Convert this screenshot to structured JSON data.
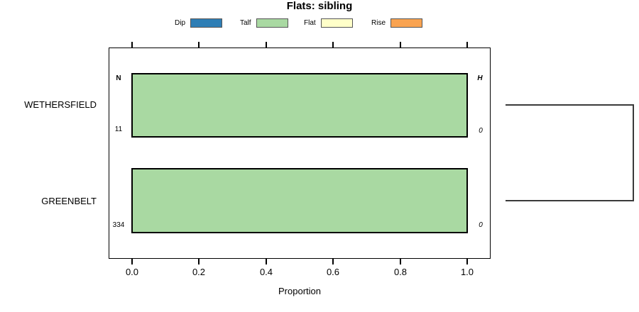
{
  "title": "Flats: sibling",
  "legend": {
    "items": [
      {
        "label": "Dip",
        "color": "#2e7eb5"
      },
      {
        "label": "Talf",
        "color": "#a9d9a2"
      },
      {
        "label": "Flat",
        "color": "#ffffc9"
      },
      {
        "label": "Rise",
        "color": "#f9a351"
      }
    ]
  },
  "x_axis": {
    "label": "Proportion",
    "ticks": [
      "0.0",
      "0.2",
      "0.4",
      "0.6",
      "0.8",
      "1.0"
    ]
  },
  "rows": [
    {
      "category": "WETHERSFIELD",
      "left_header": "N",
      "right_header": "H",
      "left_count": "11",
      "right_count": "0"
    },
    {
      "category": "GREENBELT",
      "left_count": "334",
      "right_count": "0"
    }
  ],
  "chart_data": {
    "type": "bar",
    "orientation": "horizontal",
    "title": "Flats: sibling",
    "xlabel": "Proportion",
    "ylabel": "",
    "xlim": [
      0.0,
      1.0
    ],
    "xticks": [
      0.0,
      0.2,
      0.4,
      0.6,
      0.8,
      1.0
    ],
    "grid": false,
    "legend_position": "top",
    "categories": [
      "WETHERSFIELD",
      "GREENBELT"
    ],
    "series": [
      {
        "name": "Dip",
        "color": "#2e7eb5",
        "values": [
          0.0,
          0.0
        ]
      },
      {
        "name": "Talf",
        "color": "#a9d9a2",
        "values": [
          1.0,
          1.0
        ]
      },
      {
        "name": "Flat",
        "color": "#ffffc9",
        "values": [
          0.0,
          0.0
        ]
      },
      {
        "name": "Rise",
        "color": "#f9a351",
        "values": [
          0.0,
          0.0
        ]
      }
    ],
    "annotations": {
      "left_header": "N",
      "right_header": "H",
      "left_counts": [
        11,
        334
      ],
      "right_counts": [
        0,
        0
      ]
    }
  }
}
